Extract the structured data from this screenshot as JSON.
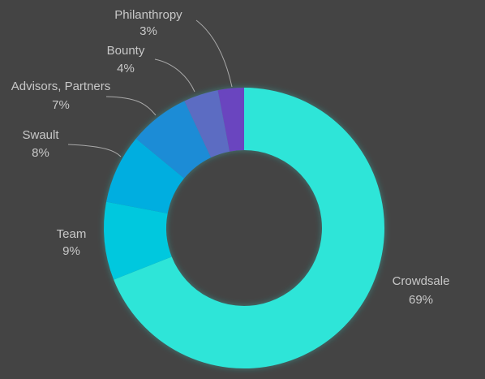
{
  "chart_data": {
    "type": "pie",
    "donut": true,
    "title": "",
    "start_angle_deg": 0,
    "direction": "clockwise",
    "legend": "none",
    "slices": [
      {
        "label": "Crowdsale",
        "value": 69,
        "pct_label": "69%",
        "color": "#2ee5d8"
      },
      {
        "label": "Team",
        "value": 9,
        "pct_label": "9%",
        "color": "#00c8de"
      },
      {
        "label": "Swault",
        "value": 8,
        "pct_label": "8%",
        "color": "#00aee0"
      },
      {
        "label": "Advisors, Partners",
        "value": 7,
        "pct_label": "7%",
        "color": "#1e8cd6"
      },
      {
        "label": "Bounty",
        "value": 4,
        "pct_label": "4%",
        "color": "#5b6cc2"
      },
      {
        "label": "Philanthropy",
        "value": 3,
        "pct_label": "3%",
        "color": "#6a45bf"
      }
    ]
  },
  "colors": {
    "background": "#444444",
    "label_text": "#c8c8c8",
    "leader_line": "#a9a9a9",
    "glow": "#2ee5d8"
  }
}
